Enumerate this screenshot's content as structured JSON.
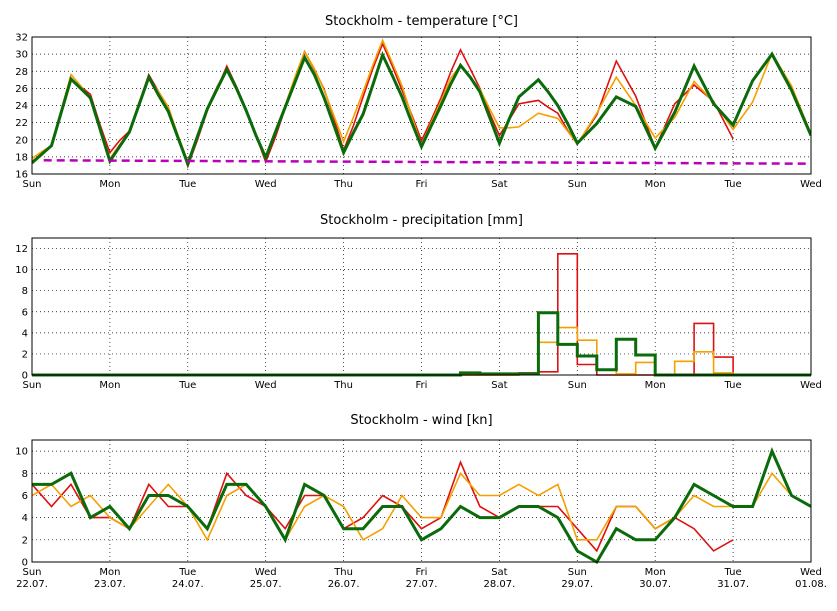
{
  "chart_data": [
    {
      "type": "line",
      "title": "Stockholm - temperature [°C]",
      "xlabel": "",
      "ylabel": "",
      "ylim": [
        16,
        32
      ],
      "yticks": [
        16,
        18,
        20,
        22,
        24,
        26,
        28,
        30,
        32
      ],
      "xlim": [
        0,
        10
      ],
      "xticks": [
        {
          "x": 0,
          "day": "Sun"
        },
        {
          "x": 1,
          "day": "Mon"
        },
        {
          "x": 2,
          "day": "Tue"
        },
        {
          "x": 3,
          "day": "Wed"
        },
        {
          "x": 4,
          "day": "Thu"
        },
        {
          "x": 5,
          "day": "Fri"
        },
        {
          "x": 6,
          "day": "Sat"
        },
        {
          "x": 7,
          "day": "Sun"
        },
        {
          "x": 8,
          "day": "Mon"
        },
        {
          "x": 9,
          "day": "Tue"
        },
        {
          "x": 10,
          "day": "Wed"
        }
      ],
      "grid": true,
      "series": [
        {
          "color": "#e01010",
          "width": 1.6,
          "x": [
            0,
            0.125,
            0.25,
            0.375,
            0.5,
            0.625,
            0.75,
            0.875,
            1,
            1.125,
            1.25,
            1.375,
            1.5,
            1.625,
            1.75,
            1.875,
            2,
            2.125,
            2.25,
            2.375,
            2.5,
            2.625,
            2.75,
            2.875,
            3,
            3.125,
            3.25,
            3.375,
            3.5,
            3.625,
            3.75,
            3.875,
            4,
            4.125,
            4.25,
            4.375,
            4.5,
            4.625,
            4.75,
            4.875,
            5,
            5.125,
            5.25,
            5.375,
            5.5,
            5.625,
            5.75,
            5.875,
            6,
            6.125,
            6.25,
            6.375,
            6.5,
            6.625,
            6.75,
            6.875,
            7,
            7.25,
            7.5,
            7.75,
            8,
            8.25,
            8.5,
            8.75,
            9
          ],
          "y": [
            17.5,
            18.2,
            19.4,
            23.3,
            27.0,
            26.2,
            25.3,
            21.7,
            18.5,
            19.9,
            21.0,
            24.3,
            27.6,
            25.6,
            23.8,
            20.2,
            16.9,
            20.0,
            23.4,
            25.9,
            28.6,
            26.2,
            23.5,
            20.5,
            17.4,
            20.3,
            23.7,
            27.0,
            30.3,
            28.2,
            25.9,
            22.5,
            18.8,
            21.6,
            25.0,
            28.3,
            31.2,
            28.6,
            25.8,
            22.9,
            19.9,
            22.3,
            24.9,
            27.9,
            30.5,
            28.3,
            26.0,
            23.1,
            20.5,
            22.3,
            24.2,
            24.4,
            24.6,
            23.8,
            23.1,
            21.1,
            19.5,
            22.9,
            29.2,
            25.1,
            19.0,
            24.2,
            26.4,
            24.5,
            20.1
          ]
        },
        {
          "color": "#f5a000",
          "width": 1.6,
          "x": [
            0,
            0.125,
            0.25,
            0.375,
            0.5,
            0.625,
            0.75,
            0.875,
            1,
            1.125,
            1.25,
            1.375,
            1.5,
            1.625,
            1.75,
            1.875,
            2,
            2.125,
            2.25,
            2.375,
            2.5,
            2.625,
            2.75,
            2.875,
            3,
            3.125,
            3.25,
            3.375,
            3.5,
            3.625,
            3.75,
            3.875,
            4,
            4.125,
            4.25,
            4.375,
            4.5,
            4.625,
            4.75,
            4.875,
            5,
            5.125,
            5.25,
            5.375,
            5.5,
            5.625,
            5.75,
            5.875,
            6,
            6.125,
            6.25,
            6.375,
            6.5,
            6.625,
            6.75,
            6.875,
            7,
            7.25,
            7.5,
            7.75,
            8,
            8.25,
            8.5,
            8.75,
            9,
            9.25,
            9.5,
            9.75,
            10
          ],
          "y": [
            17.8,
            18.6,
            19.3,
            23.5,
            27.6,
            26.3,
            24.7,
            21.4,
            17.8,
            19.4,
            20.9,
            24.4,
            27.2,
            25.6,
            23.8,
            20.5,
            17.4,
            20.3,
            23.7,
            26.2,
            28.2,
            25.8,
            23.3,
            20.6,
            18.1,
            21.0,
            24.0,
            27.3,
            30.3,
            28.3,
            25.8,
            22.8,
            19.8,
            22.6,
            25.6,
            28.7,
            31.6,
            29.0,
            26.3,
            22.7,
            19.3,
            22.0,
            24.5,
            27.2,
            28.7,
            27.3,
            25.9,
            23.6,
            21.4,
            21.4,
            21.5,
            22.3,
            23.1,
            22.8,
            22.5,
            21.0,
            19.5,
            23.1,
            27.3,
            24.0,
            20.2,
            22.6,
            26.8,
            24.4,
            21.2,
            24.4,
            30.1,
            26.3,
            20.7
          ]
        },
        {
          "color": "#0b6b0b",
          "width": 3,
          "x": [
            0,
            0.125,
            0.25,
            0.375,
            0.5,
            0.625,
            0.75,
            0.875,
            1,
            1.125,
            1.25,
            1.375,
            1.5,
            1.625,
            1.75,
            1.875,
            2,
            2.125,
            2.25,
            2.375,
            2.5,
            2.625,
            2.75,
            2.875,
            3,
            3.125,
            3.25,
            3.375,
            3.5,
            3.625,
            3.75,
            3.875,
            4,
            4.125,
            4.25,
            4.375,
            4.5,
            4.625,
            4.75,
            4.875,
            5,
            5.125,
            5.25,
            5.375,
            5.5,
            5.625,
            5.75,
            5.875,
            6,
            6.125,
            6.25,
            6.375,
            6.5,
            6.625,
            6.75,
            6.875,
            7,
            7.25,
            7.5,
            7.75,
            8,
            8.25,
            8.5,
            8.75,
            9,
            9.25,
            9.5,
            9.75,
            10
          ],
          "y": [
            17.3,
            18.3,
            19.3,
            23.2,
            27.1,
            26.0,
            24.9,
            21.2,
            17.5,
            19.2,
            20.9,
            24.1,
            27.3,
            25.2,
            23.3,
            20.2,
            17.2,
            20.4,
            23.6,
            25.9,
            28.2,
            26.0,
            23.4,
            20.5,
            17.9,
            20.9,
            23.8,
            26.7,
            29.6,
            27.6,
            24.9,
            21.7,
            18.5,
            20.8,
            23.0,
            26.4,
            29.9,
            27.5,
            25.0,
            22.0,
            19.2,
            21.6,
            24.0,
            26.5,
            28.7,
            27.3,
            25.6,
            22.6,
            19.6,
            22.4,
            25.0,
            26.0,
            27.0,
            25.6,
            24.0,
            21.9,
            19.6,
            21.9,
            25.0,
            23.9,
            19.0,
            23.2,
            28.6,
            24.2,
            21.7,
            26.9,
            30.0,
            25.8,
            20.5
          ]
        },
        {
          "color": "#bb00bb",
          "width": 2.5,
          "dashed": true,
          "x": [
            0.15,
            10
          ],
          "y": [
            17.6,
            17.2
          ]
        }
      ]
    },
    {
      "type": "line",
      "title": "Stockholm - precipitation [mm]",
      "xlabel": "",
      "ylabel": "",
      "ylim": [
        0,
        13
      ],
      "yticks": [
        0,
        2,
        4,
        6,
        8,
        10,
        12
      ],
      "xlim": [
        0,
        10
      ],
      "xticks": [
        {
          "x": 0,
          "day": "Sun"
        },
        {
          "x": 1,
          "day": "Mon"
        },
        {
          "x": 2,
          "day": "Tue"
        },
        {
          "x": 3,
          "day": "Wed"
        },
        {
          "x": 4,
          "day": "Thu"
        },
        {
          "x": 5,
          "day": "Fri"
        },
        {
          "x": 6,
          "day": "Sat"
        },
        {
          "x": 7,
          "day": "Sun"
        },
        {
          "x": 8,
          "day": "Mon"
        },
        {
          "x": 9,
          "day": "Tue"
        },
        {
          "x": 10,
          "day": "Wed"
        }
      ],
      "grid": true,
      "series": [
        {
          "color": "#e01010",
          "width": 1.6,
          "step": true,
          "x": [
            0,
            0.5,
            0.5,
            6.25,
            6.25,
            6.5,
            6.5,
            6.75,
            6.75,
            7.0,
            7.0,
            7.25,
            7.25,
            8.5,
            8.5,
            8.75,
            8.75,
            9.0,
            9.0,
            10
          ],
          "y": [
            0,
            0,
            0,
            0,
            0.2,
            0.2,
            0.3,
            0.3,
            11.5,
            11.5,
            1.0,
            1.0,
            0,
            0,
            4.9,
            4.9,
            1.7,
            1.7,
            0,
            0
          ]
        },
        {
          "color": "#f5a000",
          "width": 1.6,
          "step": true,
          "x": [
            0,
            6.25,
            6.25,
            6.5,
            6.5,
            6.75,
            6.75,
            7.0,
            7.0,
            7.25,
            7.25,
            7.5,
            7.5,
            7.75,
            7.75,
            8.0,
            8.0,
            8.25,
            8.25,
            8.5,
            8.5,
            8.75,
            8.75,
            9.0,
            9.0,
            10
          ],
          "y": [
            0,
            0,
            0.1,
            0.1,
            3.1,
            3.1,
            4.5,
            4.5,
            3.3,
            3.3,
            0.5,
            0.5,
            0.1,
            0.1,
            1.2,
            1.2,
            0,
            0,
            1.3,
            1.3,
            2.2,
            2.2,
            0.2,
            0.2,
            0,
            0
          ]
        },
        {
          "color": "#0b6b0b",
          "width": 3,
          "step": true,
          "x": [
            0,
            5.5,
            5.5,
            5.75,
            5.75,
            6.5,
            6.5,
            6.75,
            6.75,
            7.0,
            7.0,
            7.25,
            7.25,
            7.5,
            7.5,
            7.75,
            7.75,
            8.0,
            8.0,
            10
          ],
          "y": [
            0,
            0,
            0.2,
            0.2,
            0.1,
            0.1,
            5.9,
            5.9,
            2.9,
            2.9,
            1.8,
            1.8,
            0.5,
            0.5,
            3.4,
            3.4,
            1.9,
            1.9,
            0,
            0
          ]
        }
      ]
    },
    {
      "type": "line",
      "title": "Stockholm - wind [kn]",
      "xlabel": "",
      "ylabel": "",
      "ylim": [
        0,
        11
      ],
      "yticks": [
        0,
        2,
        4,
        6,
        8,
        10
      ],
      "xlim": [
        0,
        10
      ],
      "xticks": [
        {
          "x": 0,
          "day": "Sun",
          "date": "22.07."
        },
        {
          "x": 1,
          "day": "Mon",
          "date": "23.07."
        },
        {
          "x": 2,
          "day": "Tue",
          "date": "24.07."
        },
        {
          "x": 3,
          "day": "Wed",
          "date": "25.07."
        },
        {
          "x": 4,
          "day": "Thu",
          "date": "26.07."
        },
        {
          "x": 5,
          "day": "Fri",
          "date": "27.07."
        },
        {
          "x": 6,
          "day": "Sat",
          "date": "28.07."
        },
        {
          "x": 7,
          "day": "Sun",
          "date": "29.07."
        },
        {
          "x": 8,
          "day": "Mon",
          "date": "30.07."
        },
        {
          "x": 9,
          "day": "Tue",
          "date": "31.07."
        },
        {
          "x": 10,
          "day": "Wed",
          "date": "01.08."
        }
      ],
      "grid": true,
      "series": [
        {
          "color": "#e01010",
          "width": 1.6,
          "x": [
            0,
            0.25,
            0.5,
            0.75,
            1.0,
            1.25,
            1.5,
            1.75,
            2.0,
            2.25,
            2.5,
            2.75,
            3.0,
            3.25,
            3.5,
            3.75,
            4.0,
            4.25,
            4.5,
            4.75,
            5.0,
            5.25,
            5.5,
            5.75,
            6.0,
            6.25,
            6.5,
            6.75,
            7.0,
            7.25,
            7.5,
            7.75,
            8.0,
            8.25,
            8.5,
            8.75,
            9.0
          ],
          "y": [
            7,
            5,
            7,
            4,
            4,
            3,
            7,
            5,
            5,
            3,
            8,
            6,
            5,
            3,
            6,
            6,
            3,
            4,
            6,
            5,
            3,
            4,
            9,
            5,
            4,
            5,
            5,
            5,
            3,
            1,
            5,
            5,
            3,
            4,
            3,
            1,
            2
          ]
        },
        {
          "color": "#f5a000",
          "width": 1.6,
          "x": [
            0,
            0.25,
            0.5,
            0.75,
            1.0,
            1.25,
            1.5,
            1.75,
            2.0,
            2.25,
            2.5,
            2.75,
            3.0,
            3.25,
            3.5,
            3.75,
            4.0,
            4.25,
            4.5,
            4.75,
            5.0,
            5.25,
            5.5,
            5.75,
            6.0,
            6.25,
            6.5,
            6.75,
            7.0,
            7.25,
            7.5,
            7.75,
            8.0,
            8.25,
            8.5,
            8.75,
            9.0,
            9.25,
            9.5,
            9.75,
            10
          ],
          "y": [
            6,
            7,
            5,
            6,
            4,
            3,
            5,
            7,
            5,
            2,
            6,
            7,
            5,
            2,
            5,
            6,
            5,
            2,
            3,
            6,
            4,
            4,
            8,
            6,
            6,
            7,
            6,
            7,
            2,
            2,
            5,
            5,
            3,
            4,
            6,
            5,
            5,
            5,
            8,
            6,
            5
          ]
        },
        {
          "color": "#0b6b0b",
          "width": 3,
          "x": [
            0,
            0.25,
            0.5,
            0.75,
            1.0,
            1.25,
            1.5,
            1.75,
            2.0,
            2.25,
            2.5,
            2.75,
            3.0,
            3.25,
            3.5,
            3.75,
            4.0,
            4.25,
            4.5,
            4.75,
            5.0,
            5.25,
            5.5,
            5.75,
            6.0,
            6.25,
            6.5,
            6.75,
            7.0,
            7.25,
            7.5,
            7.75,
            8.0,
            8.25,
            8.5,
            8.75,
            9.0,
            9.25,
            9.5,
            9.75,
            10
          ],
          "y": [
            7,
            7,
            8,
            4,
            5,
            3,
            6,
            6,
            5,
            3,
            7,
            7,
            5,
            2,
            7,
            6,
            3,
            3,
            5,
            5,
            2,
            3,
            5,
            4,
            4,
            5,
            5,
            4,
            1,
            0,
            3,
            2,
            2,
            4,
            7,
            6,
            5,
            5,
            10,
            6,
            5
          ]
        }
      ]
    }
  ]
}
